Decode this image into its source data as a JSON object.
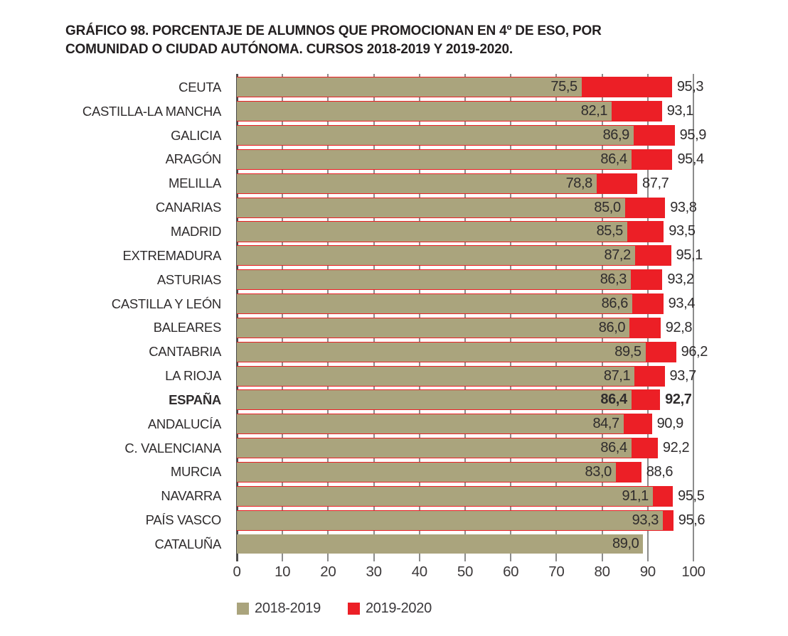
{
  "chart_data": {
    "type": "bar",
    "orientation": "horizontal",
    "title": "GRÁFICO 98. PORCENTAJE DE ALUMNOS QUE PROMOCIONAN EN 4º DE ESO, POR COMUNIDAD O CIUDAD AUTÓNOMA. CURSOS 2018-2019 Y 2019-2020.",
    "xlabel": "",
    "ylabel": "",
    "categories": [
      "CEUTA",
      "CASTILLA-LA MANCHA",
      "GALICIA",
      "ARAGÓN",
      "MELILLA",
      "CANARIAS",
      "MADRID",
      "EXTREMADURA",
      "ASTURIAS",
      "CASTILLA Y LEÓN",
      "BALEARES",
      "CANTABRIA",
      "LA RIOJA",
      "ESPAÑA",
      "ANDALUCÍA",
      "C. VALENCIANA",
      "MURCIA",
      "NAVARRA",
      "PAÍS VASCO",
      "CATALUÑA"
    ],
    "series": [
      {
        "name": "2018-2019",
        "color": "#aaa47d",
        "values": [
          75.5,
          82.1,
          86.9,
          86.4,
          78.8,
          85.0,
          85.5,
          87.2,
          86.3,
          86.6,
          86.0,
          89.5,
          87.1,
          86.4,
          84.7,
          86.4,
          83.0,
          91.1,
          93.3,
          89.0
        ]
      },
      {
        "name": "2019-2020",
        "color": "#ec1f26",
        "values": [
          95.3,
          93.1,
          95.9,
          95.4,
          87.7,
          93.8,
          93.5,
          95.1,
          93.2,
          93.4,
          92.8,
          96.2,
          93.7,
          92.7,
          90.9,
          92.2,
          88.6,
          95.5,
          95.6,
          null
        ]
      }
    ],
    "emphasized_category": "ESPAÑA",
    "xlim": [
      0,
      100
    ],
    "x_ticks": [
      0,
      10,
      20,
      30,
      40,
      50,
      60,
      70,
      80,
      90,
      100
    ],
    "grid": "vertical-gridlines",
    "legend_position": "bottom",
    "decimal_separator": ","
  },
  "colors": {
    "gridline": "#8c8c8c",
    "axis_line": "#4b4b4b",
    "title_text": "#231f20",
    "label_text": "#2f2c2d"
  }
}
